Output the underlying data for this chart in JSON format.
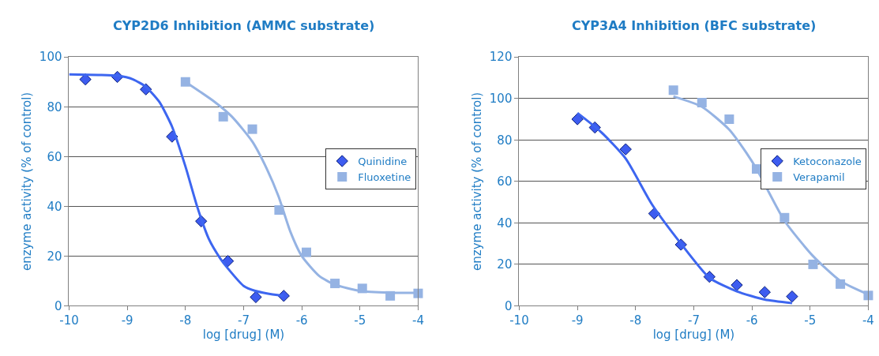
{
  "chart_data": [
    {
      "type": "scatter",
      "title": "CYP2D6 Inhibition (AMMC substrate)",
      "xlabel": "log [drug] (M)",
      "ylabel": "enzyme activity (% of control)",
      "xlim": [
        -10,
        -4
      ],
      "xticks": [
        -10,
        -9,
        -8,
        -7,
        -6,
        -5,
        -4
      ],
      "ylim": [
        0,
        100
      ],
      "yticks": [
        0,
        20,
        40,
        60,
        80,
        100
      ],
      "grid": "y",
      "legend": "right",
      "series": [
        {
          "name": "Quinidine",
          "marker": "diamond",
          "color": "#3d5cf0",
          "x": [
            -9.72,
            -9.17,
            -8.68,
            -8.23,
            -7.73,
            -7.27,
            -6.79,
            -6.31
          ],
          "values": [
            91,
            92,
            87,
            68,
            34,
            18,
            3.5,
            4
          ]
        },
        {
          "name": "Fluoxetine",
          "marker": "square",
          "color": "#95b3e3",
          "x": [
            -8.0,
            -7.35,
            -6.85,
            -6.39,
            -5.92,
            -5.43,
            -4.96,
            -4.48,
            -4.0
          ],
          "values": [
            90,
            76,
            71,
            38.5,
            21.5,
            9,
            7,
            4,
            5
          ]
        },
        {
          "type": "line",
          "marker": "none",
          "color": "#3d66f0",
          "x": [
            -10,
            -9.5,
            -9.17,
            -8.9,
            -8.68,
            -8.45,
            -8.23,
            -8.0,
            -7.8,
            -7.6,
            -7.4,
            -7.27,
            -7.0,
            -6.8,
            -6.6,
            -6.31
          ],
          "values": [
            93,
            92.8,
            92.5,
            91,
            88,
            82,
            72,
            56,
            40,
            27,
            19,
            15,
            8,
            6,
            5,
            4
          ]
        },
        {
          "type": "line",
          "marker": "none",
          "color": "#95b3e3",
          "x": [
            -8.0,
            -7.5,
            -7.2,
            -6.85,
            -6.6,
            -6.4,
            -6.2,
            -6.0,
            -5.7,
            -5.43,
            -5.0,
            -4.5,
            -4.0
          ],
          "values": [
            90,
            82,
            76,
            66,
            55,
            44,
            30,
            20,
            12,
            8.5,
            6,
            5.3,
            5.2
          ]
        }
      ]
    },
    {
      "type": "scatter",
      "title": "CYP3A4 Inhibition (BFC substrate)",
      "xlabel": "log [drug] (M)",
      "ylabel": "enzyme activity (% of control)",
      "xlim": [
        -10,
        -4
      ],
      "xticks": [
        -10,
        -9,
        -8,
        -7,
        -6,
        -5,
        -4
      ],
      "ylim": [
        0,
        120
      ],
      "yticks": [
        0,
        20,
        40,
        60,
        80,
        100,
        120
      ],
      "grid": "y",
      "legend": "right",
      "series": [
        {
          "name": "Ketoconazole",
          "marker": "diamond",
          "color": "#3d5cf0",
          "x": [
            -9.0,
            -8.7,
            -8.17,
            -7.68,
            -7.22,
            -6.73,
            -6.26,
            -5.78,
            -5.31
          ],
          "values": [
            90,
            86,
            75.5,
            44.5,
            29.5,
            14,
            10,
            6.6,
            4.5
          ]
        },
        {
          "name": "Verapamil",
          "marker": "square",
          "color": "#95b3e3",
          "x": [
            -7.35,
            -6.86,
            -6.39,
            -5.92,
            -5.44,
            -4.95,
            -4.48,
            -4.0
          ],
          "values": [
            104,
            98,
            90,
            66,
            42.5,
            20,
            10.5,
            5
          ]
        },
        {
          "type": "line",
          "marker": "none",
          "color": "#3d66f0",
          "x": [
            -9.0,
            -8.6,
            -8.17,
            -7.72,
            -7.22,
            -6.73,
            -6.26,
            -5.78,
            -5.31
          ],
          "values": [
            93,
            84,
            71,
            49,
            30,
            13.5,
            7,
            3,
            1.3
          ]
        },
        {
          "type": "line",
          "marker": "none",
          "color": "#95b3e3",
          "x": [
            -7.35,
            -6.86,
            -6.39,
            -6.1,
            -5.92,
            -5.44,
            -4.95,
            -4.48,
            -4.0
          ],
          "values": [
            101,
            96,
            85,
            74,
            66,
            41,
            24,
            12,
            5.5
          ]
        }
      ]
    }
  ]
}
